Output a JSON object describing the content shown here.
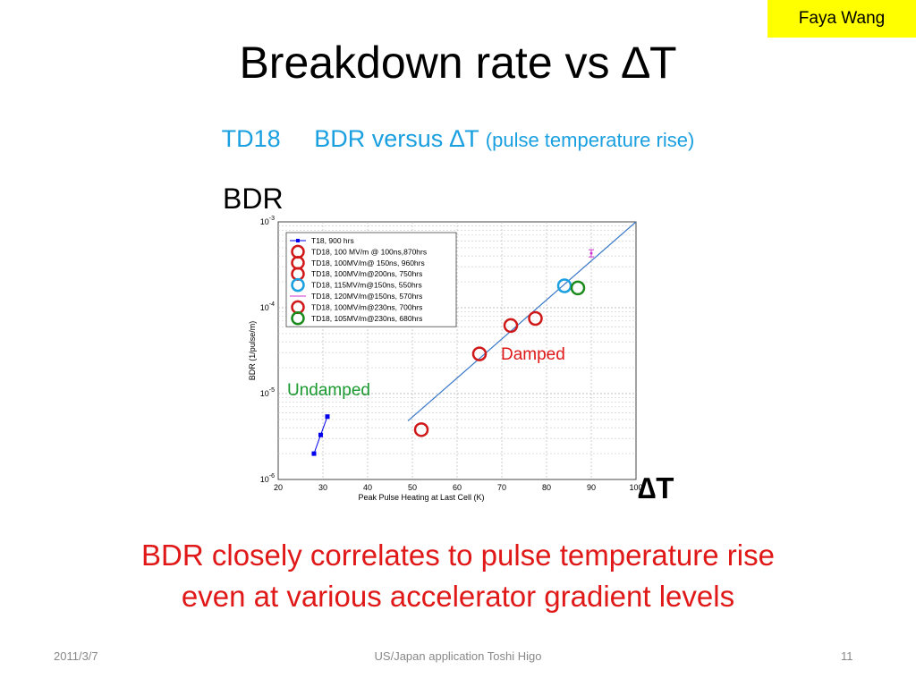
{
  "slide": {
    "author_tag": "Faya Wang",
    "title": "Breakdown rate vs ∆T",
    "subtitle_main": "TD18     BDR versus ∆T ",
    "subtitle_small": "(pulse temperature rise)",
    "bdr_label": "BDR",
    "dt_label": "∆T",
    "conclusion_line1": "BDR closely correlates to pulse temperature rise",
    "conclusion_line2": "even at various accelerator gradient levels",
    "footer_date": "2011/3/7",
    "footer_center": "US/Japan application Toshi Higo",
    "footer_page": "11"
  },
  "chart_data": {
    "type": "scatter",
    "xlabel": "Peak Pulse Heating at Last Cell (K)",
    "ylabel": "BDR (1/pulse/m)",
    "xlim": [
      20,
      100
    ],
    "ylim": [
      1e-06,
      0.001
    ],
    "y_scale": "log",
    "x_ticks": [
      "20",
      "30",
      "40",
      "50",
      "60",
      "70",
      "80",
      "90",
      "100"
    ],
    "y_ticks": [
      {
        "base": "10",
        "exp": "-6"
      },
      {
        "base": "10",
        "exp": "-5"
      },
      {
        "base": "10",
        "exp": "-4"
      },
      {
        "base": "10",
        "exp": "-3"
      }
    ],
    "grid": true,
    "legend_position": "top-left",
    "series": [
      {
        "name": "T18, 900 hrs",
        "color": "#0000ee",
        "marker": "square",
        "points": [
          [
            28,
            2e-06
          ],
          [
            29.5,
            3.3e-06
          ],
          [
            31,
            5.4e-06
          ]
        ]
      },
      {
        "name": "TD18, 100 MV/m @ 100ns,870hrs",
        "color": "#d01818",
        "marker": "circle",
        "points": [
          [
            52,
            3.8e-06
          ]
        ]
      },
      {
        "name": "TD18, 100MV/m@ 150ns, 960hrs",
        "color": "#d01818",
        "marker": "circle",
        "points": [
          [
            65,
            2.9e-05
          ]
        ]
      },
      {
        "name": "TD18, 100MV/m@200ns, 750hrs",
        "color": "#d01818",
        "marker": "circle",
        "points": [
          [
            72,
            6.2e-05
          ]
        ]
      },
      {
        "name": "TD18, 115MV/m@150ns, 550hrs",
        "color": "#1aa0e0",
        "marker": "circle",
        "points": [
          [
            84,
            0.00018
          ]
        ]
      },
      {
        "name": "TD18, 120MV/m@150ns, 570hrs",
        "color": "#cc33cc",
        "marker": "errorbar",
        "points": [
          [
            90,
            0.00043
          ]
        ]
      },
      {
        "name": "TD18, 100MV/m@230ns, 700hrs",
        "color": "#d01818",
        "marker": "circle",
        "points": [
          [
            77.5,
            7.5e-05
          ]
        ]
      },
      {
        "name": "TD18, 105MV/m@230ns, 680hrs",
        "color": "#1a8a1a",
        "marker": "circle",
        "points": [
          [
            87,
            0.00017
          ]
        ]
      }
    ],
    "fit_line": {
      "x": [
        49,
        100
      ],
      "y": [
        4.8e-06,
        0.001
      ]
    },
    "annotations": [
      {
        "text": "Damped",
        "color": "#e01818"
      },
      {
        "text": "Undamped",
        "color": "#1a9a30"
      }
    ]
  }
}
